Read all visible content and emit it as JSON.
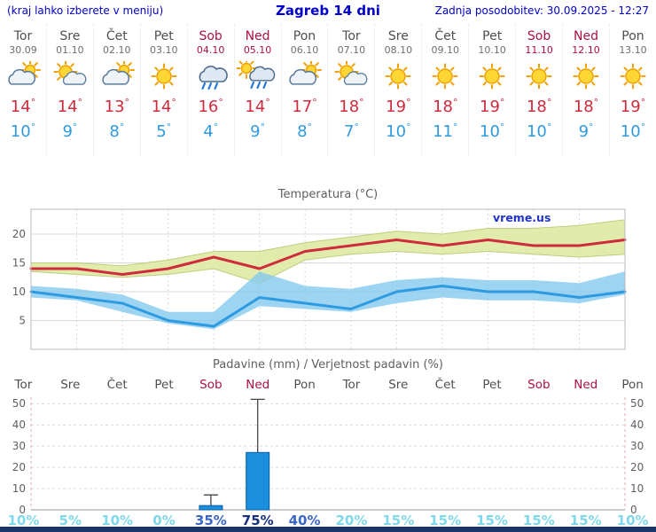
{
  "header": {
    "left_note": "(kraj lahko izberete v meniju)",
    "title": "Zagreb 14 dni",
    "updated": "Zadnja posodobitev: 30.09.2025 - 12:27"
  },
  "units": {
    "degree": "°"
  },
  "colors": {
    "accent_blue": "#0000cc",
    "weekend_red": "#aa1140",
    "weekday_gray": "#4f4f4f",
    "temp_max": "#cf2b3d",
    "temp_min": "#2e9ae0",
    "temp_band_max": "#dfeaa8",
    "temp_band_min": "#85c9ee",
    "precip_bar": "#1b8ede",
    "prob_low": "#7fd8ea",
    "prob_mid": "#3a66c8",
    "prob_high": "#16317d",
    "footer_navy": "#1b3566"
  },
  "days": [
    {
      "name": "Tor",
      "date": "30.09",
      "icon": "mostly-cloudy",
      "tmax": 14,
      "tmin": 10,
      "weekend": false
    },
    {
      "name": "Sre",
      "date": "01.10",
      "icon": "partly-sunny",
      "tmax": 14,
      "tmin": 9,
      "weekend": false
    },
    {
      "name": "Čet",
      "date": "02.10",
      "icon": "mostly-cloudy",
      "tmax": 13,
      "tmin": 8,
      "weekend": false
    },
    {
      "name": "Pet",
      "date": "03.10",
      "icon": "sunny",
      "tmax": 14,
      "tmin": 5,
      "weekend": false
    },
    {
      "name": "Sob",
      "date": "04.10",
      "icon": "rain",
      "tmax": 16,
      "tmin": 4,
      "weekend": true
    },
    {
      "name": "Ned",
      "date": "05.10",
      "icon": "rain-sun",
      "tmax": 14,
      "tmin": 9,
      "weekend": true
    },
    {
      "name": "Pon",
      "date": "06.10",
      "icon": "mostly-cloudy",
      "tmax": 17,
      "tmin": 8,
      "weekend": false
    },
    {
      "name": "Tor",
      "date": "07.10",
      "icon": "partly-sunny",
      "tmax": 18,
      "tmin": 7,
      "weekend": false
    },
    {
      "name": "Sre",
      "date": "08.10",
      "icon": "sunny",
      "tmax": 19,
      "tmin": 10,
      "weekend": false
    },
    {
      "name": "Čet",
      "date": "09.10",
      "icon": "sunny",
      "tmax": 18,
      "tmin": 11,
      "weekend": false
    },
    {
      "name": "Pet",
      "date": "10.10",
      "icon": "sunny",
      "tmax": 19,
      "tmin": 10,
      "weekend": false
    },
    {
      "name": "Sob",
      "date": "11.10",
      "icon": "sunny",
      "tmax": 18,
      "tmin": 10,
      "weekend": true
    },
    {
      "name": "Ned",
      "date": "12.10",
      "icon": "sunny",
      "tmax": 18,
      "tmin": 9,
      "weekend": true
    },
    {
      "name": "Pon",
      "date": "13.10",
      "icon": "sunny",
      "tmax": 19,
      "tmin": 10,
      "weekend": false
    }
  ],
  "chart_data": [
    {
      "type": "line",
      "title": "Temperatura (°C)",
      "watermark": "vreme.us",
      "x_categories": [
        "Tor",
        "Sre",
        "Čet",
        "Pet",
        "Sob",
        "Ned",
        "Pon",
        "Tor",
        "Sre",
        "Čet",
        "Pet",
        "Sob",
        "Ned",
        "Pon"
      ],
      "ylim": [
        0,
        24
      ],
      "yticks": [
        5,
        10,
        15,
        20
      ],
      "series": [
        {
          "name": "tmax",
          "values": [
            14,
            14,
            13,
            14,
            16,
            14,
            17,
            18,
            19,
            18,
            19,
            18,
            18,
            19
          ]
        },
        {
          "name": "tmin",
          "values": [
            10,
            9,
            8,
            5,
            4,
            9,
            8,
            7,
            10,
            11,
            10,
            10,
            9,
            10
          ]
        },
        {
          "name": "max_band_upper",
          "values": [
            15,
            15,
            14.5,
            15.5,
            17,
            17,
            18.5,
            19.5,
            20.5,
            20,
            21,
            21,
            21.5,
            22.5
          ]
        },
        {
          "name": "max_band_lower",
          "values": [
            13.5,
            13,
            12.5,
            13,
            14,
            11.5,
            15.5,
            16.5,
            17,
            16.5,
            17,
            16.5,
            16,
            16.5
          ]
        },
        {
          "name": "min_band_upper",
          "values": [
            11,
            10.5,
            9.5,
            6.5,
            6.5,
            13.5,
            11,
            10.5,
            12,
            12.5,
            12,
            12,
            11.5,
            13.5
          ]
        },
        {
          "name": "min_band_lower",
          "values": [
            9,
            8.5,
            6.5,
            4.5,
            3.5,
            7.5,
            7,
            6.5,
            8,
            9,
            8.5,
            8.5,
            8,
            9.5
          ]
        }
      ]
    },
    {
      "type": "bar",
      "title": "Padavine (mm) / Verjetnost padavin (%)",
      "categories": [
        "Tor",
        "Sre",
        "Čet",
        "Pet",
        "Sob",
        "Ned",
        "Pon",
        "Tor",
        "Sre",
        "Čet",
        "Pet",
        "Sob",
        "Ned",
        "Pon"
      ],
      "weekend": [
        false,
        false,
        false,
        false,
        true,
        true,
        false,
        false,
        false,
        false,
        false,
        true,
        true,
        false
      ],
      "values": [
        0,
        0,
        0,
        0,
        2,
        27,
        0,
        0,
        0,
        0,
        0,
        0,
        0,
        0
      ],
      "whisker_max": [
        0,
        0,
        0,
        0,
        7,
        52,
        0,
        0,
        0,
        0,
        0,
        0,
        0,
        0
      ],
      "ylim": [
        0,
        53
      ],
      "yticks": [
        0,
        10,
        20,
        30,
        40,
        50
      ],
      "probabilities": [
        {
          "label": "10%",
          "level": "low"
        },
        {
          "label": "5%",
          "level": "low"
        },
        {
          "label": "10%",
          "level": "low"
        },
        {
          "label": "0%",
          "level": "low"
        },
        {
          "label": "35%",
          "level": "mid"
        },
        {
          "label": "75%",
          "level": "high"
        },
        {
          "label": "40%",
          "level": "mid"
        },
        {
          "label": "20%",
          "level": "low"
        },
        {
          "label": "15%",
          "level": "low"
        },
        {
          "label": "15%",
          "level": "low"
        },
        {
          "label": "15%",
          "level": "low"
        },
        {
          "label": "15%",
          "level": "low"
        },
        {
          "label": "15%",
          "level": "low"
        },
        {
          "label": "10%",
          "level": "low"
        }
      ]
    }
  ]
}
